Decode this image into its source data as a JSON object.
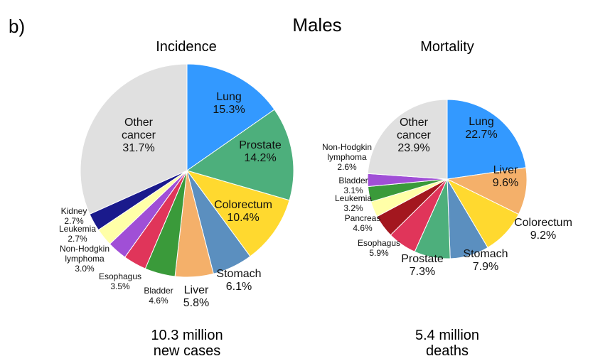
{
  "panel_label": "b)",
  "title": "Males",
  "chart_data": [
    {
      "type": "pie",
      "title": "Incidence",
      "total_label": [
        "10.3 million",
        "new cases"
      ],
      "slices": [
        {
          "label": "Lung",
          "value": 15.3,
          "value_label": "15.3%",
          "color": "#3399ff"
        },
        {
          "label": "Prostate",
          "value": 14.2,
          "value_label": "14.2%",
          "color": "#4daf7c"
        },
        {
          "label": "Colorectum",
          "value": 10.4,
          "value_label": "10.4%",
          "color": "#ffd92f"
        },
        {
          "label": "Stomach",
          "value": 6.1,
          "value_label": "6.1%",
          "color": "#5b8fbf"
        },
        {
          "label": "Liver",
          "value": 5.8,
          "value_label": "5.8%",
          "color": "#f4b06a"
        },
        {
          "label": "Bladder",
          "value": 4.6,
          "value_label": "4.6%",
          "color": "#3a9a3a"
        },
        {
          "label": "Esophagus",
          "value": 3.5,
          "value_label": "3.5%",
          "color": "#e0355a"
        },
        {
          "label": "Non-Hodgkin lymphoma",
          "value": 3.0,
          "value_label": "3.0%",
          "color": "#a04fd6"
        },
        {
          "label": "Leukemia",
          "value": 2.7,
          "value_label": "2.7%",
          "color": "#ffffa8"
        },
        {
          "label": "Kidney",
          "value": 2.7,
          "value_label": "2.7%",
          "color": "#1a1a8c"
        },
        {
          "label": "Other cancer",
          "value": 31.7,
          "value_label": "31.7%",
          "color": "#e0e0e0"
        }
      ]
    },
    {
      "type": "pie",
      "title": "Mortality",
      "total_label": [
        "5.4 million",
        "deaths"
      ],
      "slices": [
        {
          "label": "Lung",
          "value": 22.7,
          "value_label": "22.7%",
          "color": "#3399ff"
        },
        {
          "label": "Liver",
          "value": 9.6,
          "value_label": "9.6%",
          "color": "#f4b06a"
        },
        {
          "label": "Colorectum",
          "value": 9.2,
          "value_label": "9.2%",
          "color": "#ffd92f"
        },
        {
          "label": "Stomach",
          "value": 7.9,
          "value_label": "7.9%",
          "color": "#5b8fbf"
        },
        {
          "label": "Prostate",
          "value": 7.3,
          "value_label": "7.3%",
          "color": "#4daf7c"
        },
        {
          "label": "Esophagus",
          "value": 5.9,
          "value_label": "5.9%",
          "color": "#e0355a"
        },
        {
          "label": "Pancreas",
          "value": 4.6,
          "value_label": "4.6%",
          "color": "#a3171f"
        },
        {
          "label": "Leukemia",
          "value": 3.2,
          "value_label": "3.2%",
          "color": "#ffffa8"
        },
        {
          "label": "Bladder",
          "value": 3.1,
          "value_label": "3.1%",
          "color": "#3a9a3a"
        },
        {
          "label": "Non-Hodgkin lymphoma",
          "value": 2.6,
          "value_label": "2.6%",
          "color": "#a04fd6"
        },
        {
          "label": "Other cancer",
          "value": 23.9,
          "value_label": "23.9%",
          "color": "#e0e0e0"
        }
      ]
    }
  ]
}
